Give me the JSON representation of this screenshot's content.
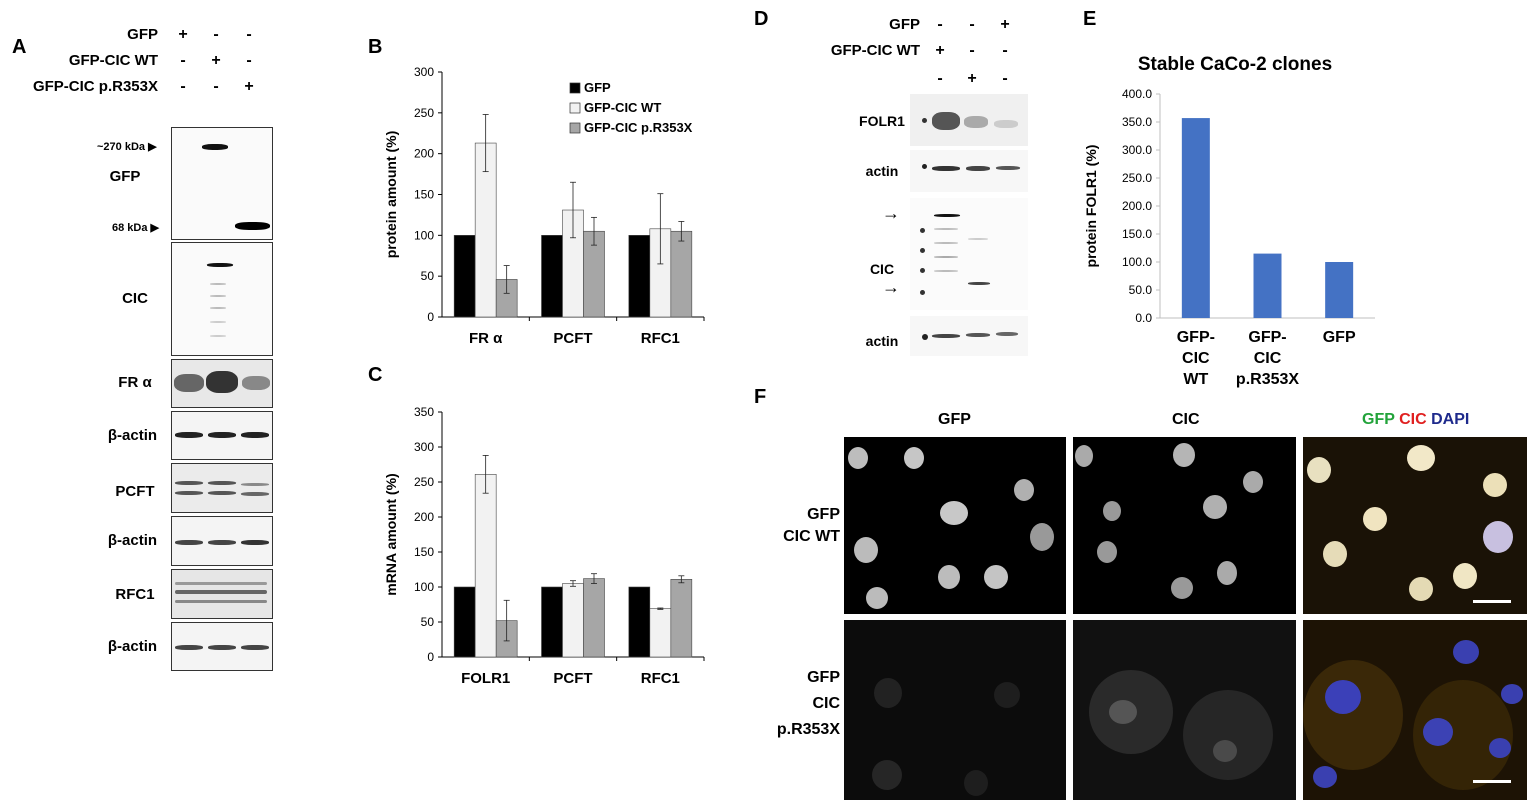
{
  "panels": {
    "A": "A",
    "B": "B",
    "C": "C",
    "D": "D",
    "E": "E",
    "F": "F"
  },
  "panelA": {
    "conditions": [
      {
        "label": "GFP",
        "signs": [
          "+",
          "-",
          "-"
        ]
      },
      {
        "label": "GFP-CIC WT",
        "signs": [
          "-",
          "+",
          "-"
        ]
      },
      {
        "label": "GFP-CIC p.R353X",
        "signs": [
          "-",
          "-",
          "+"
        ]
      }
    ],
    "marker_high": "~270 kDa",
    "marker_low": "68 kDa",
    "blots": [
      "GFP",
      "CIC",
      "FR α",
      "β-actin",
      "PCFT",
      "β-actin",
      "RFC1",
      "β-actin"
    ]
  },
  "panelD": {
    "conditions": [
      {
        "label": "GFP",
        "signs": [
          "-",
          "-",
          "+"
        ]
      },
      {
        "label": "GFP-CIC WT",
        "signs": [
          "+",
          "-",
          "-"
        ]
      },
      {
        "label": "",
        "signs": [
          "-",
          "+",
          "-"
        ]
      }
    ],
    "blots": [
      "FOLR1",
      "actin",
      "CIC",
      "actin"
    ]
  },
  "panelF": {
    "columns": [
      "GFP",
      "CIC"
    ],
    "merge": {
      "gfp": "GFP",
      "cic": "CIC",
      "dapi": "DAPI"
    },
    "rows": [
      {
        "line1": "GFP",
        "line2": "CIC WT",
        "line3": ""
      },
      {
        "line1": "GFP",
        "line2": "CIC",
        "line3": "p.R353X"
      }
    ]
  },
  "chart_data": [
    {
      "id": "B",
      "type": "bar",
      "title": "",
      "xlabel": "",
      "ylabel": "protein amount (%)",
      "ylim": [
        0,
        300
      ],
      "yticks": [
        0,
        50,
        100,
        150,
        200,
        250,
        300
      ],
      "categories": [
        "FR α",
        "PCFT",
        "RFC1"
      ],
      "legend_position": "top-right",
      "series": [
        {
          "name": "GFP",
          "color": "#000000",
          "values": [
            100,
            100,
            100
          ],
          "errors": [
            0,
            0,
            0
          ]
        },
        {
          "name": "GFP-CIC WT",
          "color": "#f2f2f2",
          "values": [
            213,
            131,
            108
          ],
          "errors": [
            35,
            34,
            43
          ]
        },
        {
          "name": "GFP-CIC p.R353X",
          "color": "#a6a6a6",
          "values": [
            46,
            105,
            105
          ],
          "errors": [
            17,
            17,
            12
          ]
        }
      ]
    },
    {
      "id": "C",
      "type": "bar",
      "title": "",
      "xlabel": "",
      "ylabel": "mRNA amount (%)",
      "ylim": [
        0,
        350
      ],
      "yticks": [
        0,
        50,
        100,
        150,
        200,
        250,
        300,
        350
      ],
      "categories": [
        "FOLR1",
        "PCFT",
        "RFC1"
      ],
      "series": [
        {
          "name": "GFP",
          "color": "#000000",
          "values": [
            100,
            100,
            100
          ],
          "errors": [
            0,
            0,
            0
          ]
        },
        {
          "name": "GFP-CIC WT",
          "color": "#f2f2f2",
          "values": [
            261,
            105,
            69
          ],
          "errors": [
            27,
            4,
            1
          ]
        },
        {
          "name": "GFP-CIC p.R353X",
          "color": "#a6a6a6",
          "values": [
            52,
            112,
            111
          ],
          "errors": [
            29,
            7,
            5
          ]
        }
      ]
    },
    {
      "id": "E",
      "type": "bar",
      "title": "Stable CaCo-2 clones",
      "xlabel": "",
      "ylabel": "protein FOLR1 (%)",
      "ylim": [
        0,
        400
      ],
      "yticks": [
        "0.0",
        "50.0",
        "100.0",
        "150.0",
        "200.0",
        "250.0",
        "300.0",
        "350.0",
        "400.0"
      ],
      "categories": [
        [
          "GFP-",
          "CIC",
          "WT"
        ],
        [
          "GFP-",
          "CIC",
          "p.R353X"
        ],
        [
          "GFP"
        ]
      ],
      "series": [
        {
          "name": "",
          "color": "#4472c4",
          "values": [
            357,
            115,
            100
          ]
        }
      ]
    }
  ]
}
